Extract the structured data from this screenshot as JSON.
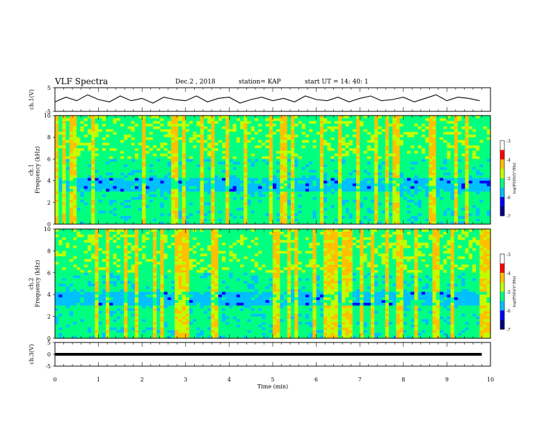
{
  "header": {
    "title": "VLF Spectra",
    "date": "Dec.2  , 2018",
    "station": "station= KAP",
    "start": "start  UT =   14: 40: 1"
  },
  "chart_data": [
    {
      "type": "line",
      "panel": "ch1-waveform",
      "ylabel": "ch.1(V)",
      "ylim": [
        -5,
        5
      ],
      "yticks": [
        "5",
        "-5"
      ],
      "x": [
        0,
        0.25,
        0.5,
        0.75,
        1,
        1.25,
        1.5,
        1.75,
        2,
        2.25,
        2.5,
        2.75,
        3,
        3.25,
        3.5,
        3.75,
        4,
        4.25,
        4.5,
        4.75,
        5,
        5.25,
        5.5,
        5.75,
        6,
        6.25,
        6.5,
        6.75,
        7,
        7.25,
        7.5,
        7.75,
        8,
        8.25,
        8.5,
        8.75,
        9,
        9.25,
        9.5,
        9.75
      ],
      "values": [
        -1,
        1,
        -0.5,
        2,
        0,
        -1,
        1.5,
        -0.5,
        0.5,
        -1.5,
        1,
        0,
        -0.5,
        1.5,
        -1,
        0.5,
        1,
        -1.5,
        0,
        1,
        -0.5,
        0.5,
        -1,
        1.5,
        0,
        -0.5,
        1,
        -1,
        0.5,
        1.5,
        -0.5,
        0,
        1,
        -1,
        0.5,
        2,
        -0.5,
        1,
        0.5,
        -0.5
      ]
    },
    {
      "type": "heatmap",
      "panel": "ch1-spectrogram",
      "ylabel": "ch.1\nFrequency (kHz)",
      "ylim": [
        0,
        10
      ],
      "yticks": [
        "0",
        "2",
        "4",
        "6",
        "8",
        "10"
      ],
      "colorbar": {
        "label": "log(PSD)(V²/Hz)",
        "range": [
          -7,
          -3
        ],
        "ticks": [
          "-3",
          "-4",
          "-5",
          "-6",
          "-7"
        ]
      },
      "colors": [
        "#000080",
        "#0000ff",
        "#00c0ff",
        "#00ff80",
        "#c0ff00",
        "#ffc000",
        "#ff0000",
        "#ffffff"
      ]
    },
    {
      "type": "heatmap",
      "panel": "ch2-spectrogram",
      "ylabel": "ch.2\nFrequency (kHz)",
      "ylim": [
        0,
        10
      ],
      "yticks": [
        "0",
        "2",
        "4",
        "6",
        "8",
        "10"
      ],
      "colorbar": {
        "label": "log(PSD)(V²/Hz)",
        "range": [
          -7,
          -3
        ],
        "ticks": [
          "-3",
          "-4",
          "-5",
          "-6",
          "-7"
        ]
      }
    },
    {
      "type": "line",
      "panel": "ch3-waveform",
      "ylabel": "ch.3(V)",
      "ylim": [
        -5,
        5
      ],
      "yticks": [
        "5",
        "0",
        "-5"
      ],
      "x": [
        0,
        9.8
      ],
      "values": [
        0,
        0
      ]
    }
  ],
  "xaxis": {
    "label": "Time  (min)",
    "range": [
      0,
      10
    ],
    "ticks": [
      "0",
      "1",
      "2",
      "3",
      "4",
      "5",
      "6",
      "7",
      "8",
      "9",
      "10"
    ]
  }
}
